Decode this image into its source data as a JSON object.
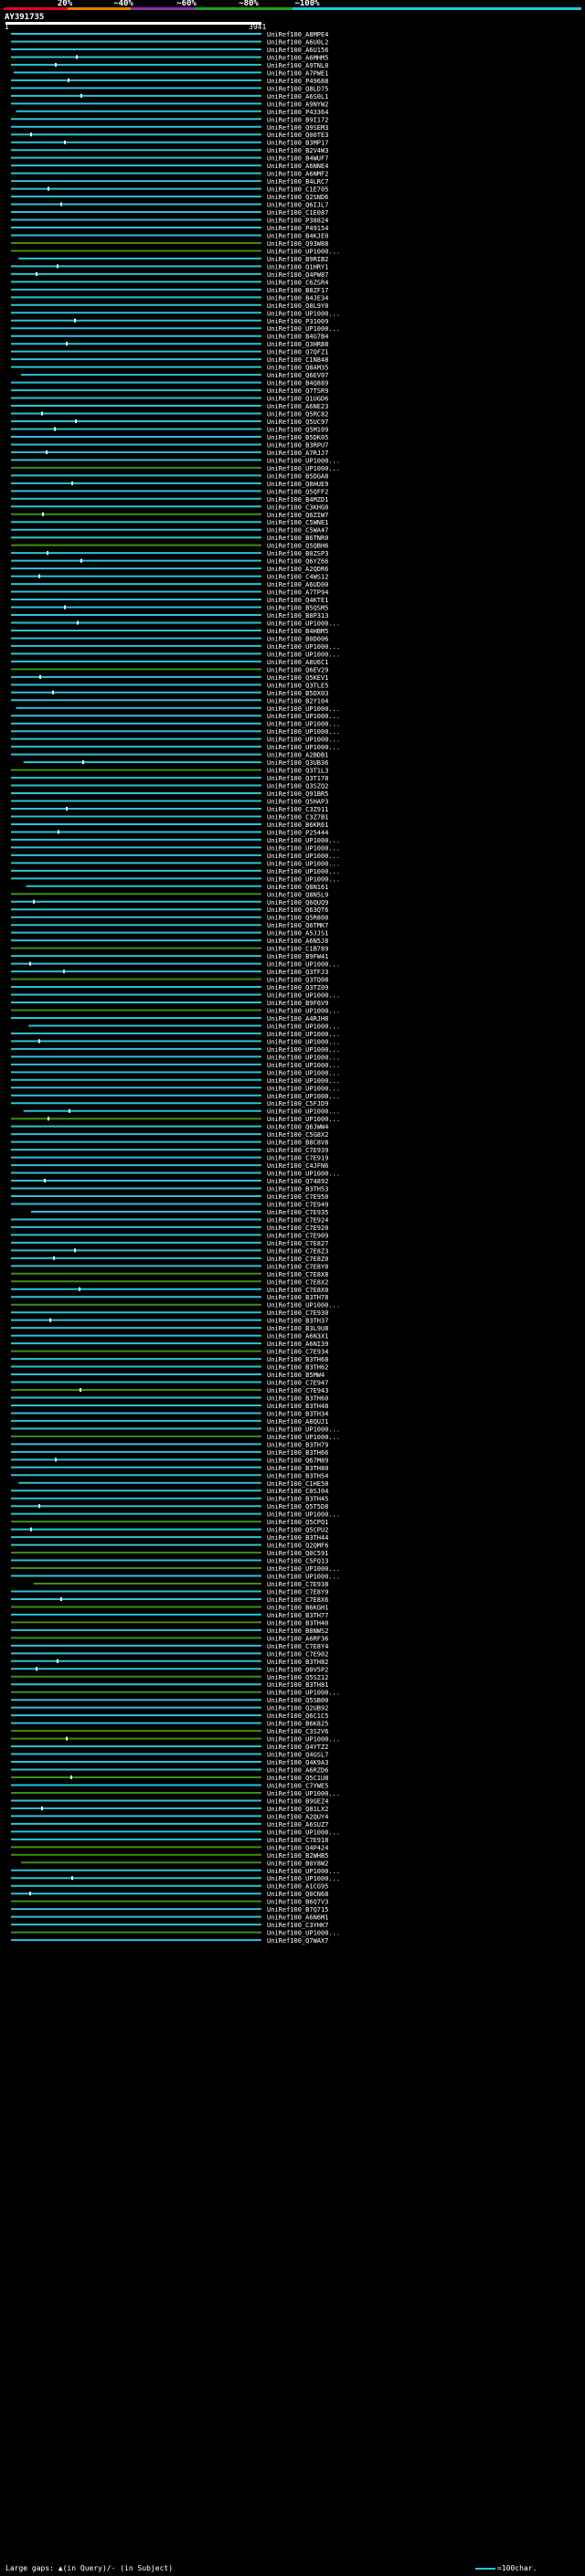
{
  "scale": {
    "labels": [
      "20%",
      "~40%",
      "~60%",
      "~80%",
      "~100%"
    ],
    "colors": [
      "#e4001e",
      "#e67c00",
      "#8e2ca9",
      "#1aa21a",
      "#1ec8d8"
    ]
  },
  "query": {
    "title": "AY391735",
    "start": "1",
    "end": "3941"
  },
  "colors": {
    "cyan": "#2ac4d4",
    "green": "#3d8f12",
    "gap": "#ffffff",
    "background": "#000000"
  },
  "footer": {
    "left": "Large gaps: ▲(in Query)/- (in Subject)",
    "right": "=100char."
  },
  "chart_data": {
    "type": "alignment-overview",
    "title": "AY391735",
    "query_range": [
      1,
      3941
    ],
    "hits": [
      "UniRef100_A8MPE4",
      "UniRef100_A6U0L2",
      "UniRef100_A6U156",
      "UniRef100_A6MHM5",
      "UniRef100_A9TNL0",
      "UniRef100_A7PWE1",
      "UniRef100_P49688",
      "UniRef100_Q8LD75",
      "UniRef100_A6S0L1",
      "UniRef100_A9NYW2",
      "UniRef100_P43364",
      "UniRef100_B9I172",
      "UniRef100_Q9SEM3",
      "UniRef100_Q00TE3",
      "UniRef100_B3MP17",
      "UniRef100_B2V4W3",
      "UniRef100_B4WUF7",
      "UniRef100_A6NNE4",
      "UniRef100_A6NMF2",
      "UniRef100_B4LRC7",
      "UniRef100_C1E705",
      "UniRef100_Q2SND6",
      "UniRef100_Q6IJL7",
      "UniRef100_C1E087",
      "UniRef100_P38824",
      "UniRef100_P49154",
      "UniRef100_B4KJE0",
      "UniRef100_Q93W88",
      "UniRef100_UP1000...",
      "UniRef100_B9RIB2",
      "UniRef100_Q1HRY1",
      "UniRef100_Q4PW87",
      "UniRef100_C6ZSR4",
      "UniRef100_B8ZF17",
      "UniRef100_B4JE34",
      "UniRef100_Q8L9Y0",
      "UniRef100_UP1000...",
      "UniRef100_P31009",
      "UniRef100_UP1000...",
      "UniRef100_B4G7B4",
      "UniRef100_Q3HRB8",
      "UniRef100_Q7QFZ1",
      "UniRef100_C1N848",
      "UniRef100_Q8AM35",
      "UniRef100_Q6EV07",
      "UniRef100_B4Q889",
      "UniRef100_Q7TSR9",
      "UniRef100_Q1UGD6",
      "UniRef100_A6NE23",
      "UniRef100_Q5RC82",
      "UniRef100_Q5UC97",
      "UniRef100_Q5M109",
      "UniRef100_B5DK05",
      "UniRef100_B3RPU7",
      "UniRef100_A7RJJ7",
      "UniRef100_UP1000...",
      "UniRef100_UP1000...",
      "UniRef100_B5DGA8",
      "UniRef100_Q8HUE9",
      "UniRef100_Q5QFF2",
      "UniRef100_B4MZD1",
      "UniRef100_C3KHG0",
      "UniRef100_Q6ZIW7",
      "UniRef100_C5WNE1",
      "UniRef100_C5WA47",
      "UniRef100_B6TNR0",
      "UniRef100_Q5QBH6",
      "UniRef100_B0ZSP3",
      "UniRef100_Q6YZ66",
      "UniRef100_A2QDR6",
      "UniRef100_C4WS12",
      "UniRef100_A6UD00",
      "UniRef100_A7TP94",
      "UniRef100_Q4KTE1",
      "UniRef100_B5QSM5",
      "UniRef100_B8P313",
      "UniRef100_UP1000...",
      "UniRef100_B4HBM5",
      "UniRef100_B0D006",
      "UniRef100_UP1000...",
      "UniRef100_UP1000...",
      "UniRef100_A8U6C1",
      "UniRef100_Q6EV29",
      "UniRef100_Q5KEV1",
      "UniRef100_Q3TLE5",
      "UniRef100_B5DX03",
      "UniRef100_B2Y104",
      "UniRef100_UP1000...",
      "UniRef100_UP1000...",
      "UniRef100_UP1000...",
      "UniRef100_UP1000...",
      "UniRef100_UP1000...",
      "UniRef100_UP1000...",
      "UniRef100_A2BDB1",
      "UniRef100_Q3UB36",
      "UniRef100_Q3T1L3",
      "UniRef100_Q3T178",
      "UniRef100_Q3SZQ2",
      "UniRef100_Q91BR5",
      "UniRef100_Q5HAP3",
      "UniRef100_C3Z911",
      "UniRef100_C3Z7B1",
      "UniRef100_B6KR61",
      "UniRef100_P25444",
      "UniRef100_UP1000...",
      "UniRef100_UP1000...",
      "UniRef100_UP1000...",
      "UniRef100_UP1000...",
      "UniRef100_UP1000...",
      "UniRef100_UP1000...",
      "UniRef100_Q8N161",
      "UniRef100_Q8N5L9",
      "UniRef100_Q6QUQ9",
      "UniRef100_Q63QT6",
      "UniRef100_Q5R800",
      "UniRef100_Q6TMK7",
      "UniRef100_A5JJS1",
      "UniRef100_A6N5J8",
      "UniRef100_C1B789",
      "UniRef100_B9FW41",
      "UniRef100_UP1000...",
      "UniRef100_Q3TFJ3",
      "UniRef100_Q3TQ08",
      "UniRef100_Q3TZ09",
      "UniRef100_UP1000...",
      "UniRef100_B9F6V9",
      "UniRef100_UP1000...",
      "UniRef100_A4RJH8",
      "UniRef100_UP1000...",
      "UniRef100_UP1000...",
      "UniRef100_UP1000...",
      "UniRef100_UP1000...",
      "UniRef100_UP1000...",
      "UniRef100_UP1000...",
      "UniRef100_UP1000...",
      "UniRef100_UP1000...",
      "UniRef100_UP1000...",
      "UniRef100_UP1000...",
      "UniRef100_C5FJD9",
      "UniRef100_UP1000...",
      "UniRef100_UP1000...",
      "UniRef100_Q6JWW4",
      "UniRef100_C5G8X2",
      "UniRef100_B8C8V8",
      "UniRef100_C7E939",
      "UniRef100_C7E919",
      "UniRef100_C4JFN6",
      "UniRef100_UP1000...",
      "UniRef100_Q74892",
      "UniRef100_B3TH53",
      "UniRef100_C7E950",
      "UniRef100_C7E949",
      "UniRef100_C7E935",
      "UniRef100_C7E924",
      "UniRef100_C7E920",
      "UniRef100_C7E909",
      "UniRef100_C7E827",
      "UniRef100_C7E8Z3",
      "UniRef100_C7E8Z0",
      "UniRef100_C7E8Y0",
      "UniRef100_C7E8X8",
      "UniRef100_C7E8X2",
      "UniRef100_C7E8X0",
      "UniRef100_B3TH78",
      "UniRef100_UP1000...",
      "UniRef100_C7E930",
      "UniRef100_B3TH37",
      "UniRef100_B3L9U8",
      "UniRef100_A6N3X1",
      "UniRef100_A6NI39",
      "UniRef100_C7E934",
      "UniRef100_B3TH68",
      "UniRef100_B3TH62",
      "UniRef100_B5MW4",
      "UniRef100_C7E947",
      "UniRef100_C7E943",
      "UniRef100_B3TH60",
      "UniRef100_B3TH48",
      "UniRef100_B3TH34",
      "UniRef100_A8QUJ1",
      "UniRef100_UP1000...",
      "UniRef100_UP1000...",
      "UniRef100_B3TH79",
      "UniRef100_B3TH66",
      "UniRef100_Q67M89",
      "UniRef100_B3TH80",
      "UniRef100_B3TH54",
      "UniRef100_C1HE50",
      "UniRef100_C0SJ04",
      "UniRef100_B3TH45",
      "UniRef100_Q5T5D8",
      "UniRef100_UP1000...",
      "UniRef100_Q5CPQ1",
      "UniRef100_Q5CPU2",
      "UniRef100_B3TH44",
      "UniRef100_Q2QMF6",
      "UniRef100_Q0C591",
      "UniRef100_C5FQ13",
      "UniRef100_UP1000...",
      "UniRef100_UP1000...",
      "UniRef100_C7E938",
      "UniRef100_C7E8Y9",
      "UniRef100_C7E8X6",
      "UniRef100_B6KGH1",
      "UniRef100_B3TH77",
      "UniRef100_B3TH40",
      "UniRef100_B8NWS2",
      "UniRef100_A6RF36",
      "UniRef100_C7E8Y4",
      "UniRef100_C7E902",
      "UniRef100_B3TH82",
      "UniRef100_Q0V5P2",
      "UniRef100_Q5SZ12",
      "UniRef100_B3TH81",
      "UniRef100_UP1000...",
      "UniRef100_Q5SB00",
      "UniRef100_Q2UB92",
      "UniRef100_Q6C1C5",
      "UniRef100_B6K825",
      "UniRef100_C3S2V6",
      "UniRef100_UP1000...",
      "UniRef100_Q4YTZ2",
      "UniRef100_Q4GSL7",
      "UniRef100_Q4K9A3",
      "UniRef100_A6RZD6",
      "UniRef100_Q5C1U8",
      "UniRef100_C7YWE5",
      "UniRef100_UP1000...",
      "UniRef100_B9GEZ4",
      "UniRef100_Q81LX2",
      "UniRef100_A2QUY4",
      "UniRef100_A6SUZ7",
      "UniRef100_UP1000...",
      "UniRef100_C7E918",
      "UniRef100_Q4P424",
      "UniRef100_B2WHB5",
      "UniRef100_B0Y8W2",
      "UniRef100_UP1000...",
      "UniRef100_UP1000...",
      "UniRef100_A1CG95",
      "UniRef100_Q0CN68",
      "UniRef100_B6Q7V3",
      "UniRef100_B7Q715",
      "UniRef100_A6N6M1",
      "UniRef100_C3YHK7",
      "UniRef100_UP1000...",
      "UniRef100_Q7WAX7"
    ]
  }
}
